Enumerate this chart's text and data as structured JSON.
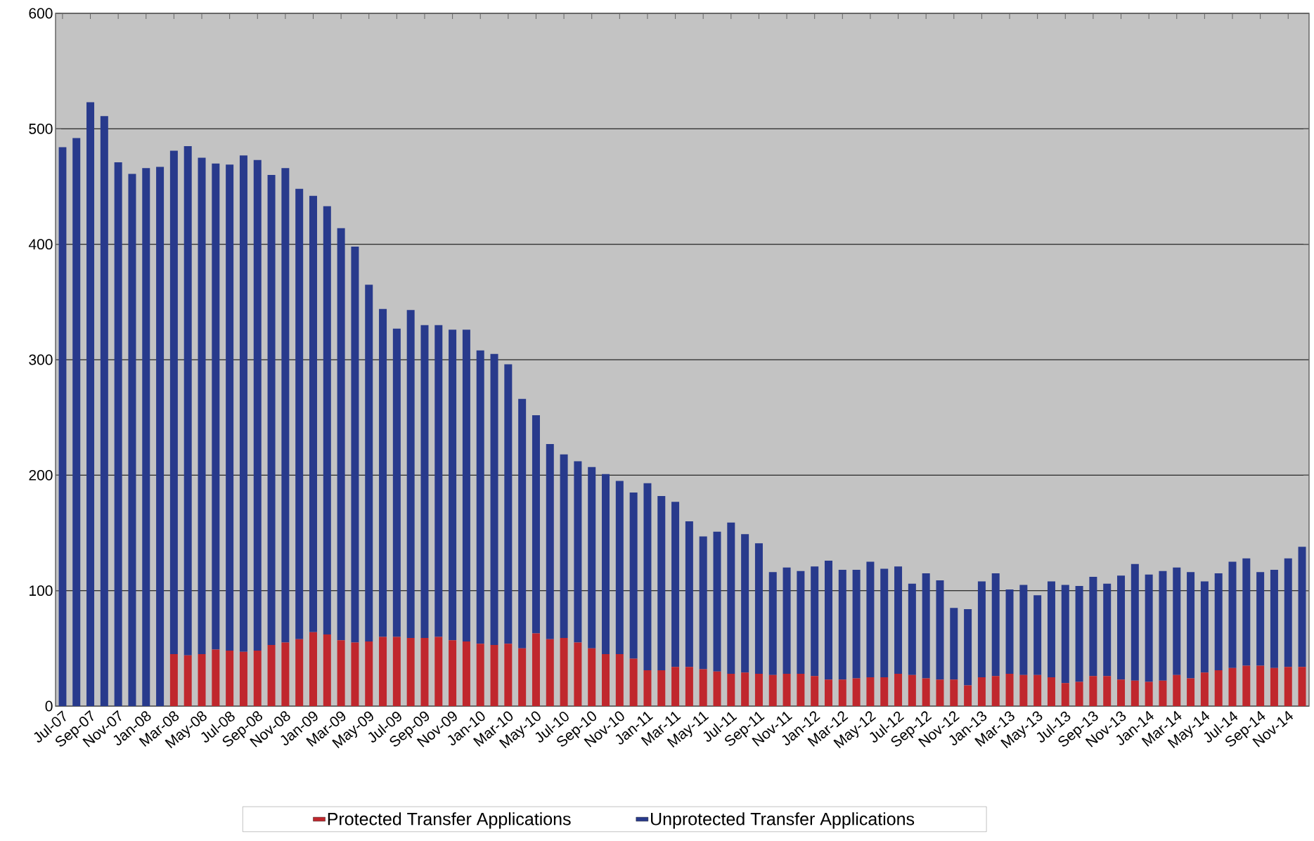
{
  "chart_data": {
    "type": "bar",
    "stacked": true,
    "grid": "y",
    "legend": "bottom",
    "ylim": [
      0,
      600
    ],
    "yticks": [
      0,
      100,
      200,
      300,
      400,
      500,
      600
    ],
    "categories": [
      "Jul-07",
      null,
      "Sep-07",
      null,
      "Nov-07",
      null,
      "Jan-08",
      null,
      "Mar-08",
      null,
      "May-08",
      null,
      "Jul-08",
      null,
      "Sep-08",
      null,
      "Nov-08",
      null,
      "Jan-09",
      null,
      "Mar-09",
      null,
      "May-09",
      null,
      "Jul-09",
      null,
      "Sep-09",
      null,
      "Nov-09",
      null,
      "Jan-10",
      null,
      "Mar-10",
      null,
      "May-10",
      null,
      "Jul-10",
      null,
      "Sep-10",
      null,
      "Nov-10",
      null,
      "Jan-11",
      null,
      "Mar-11",
      null,
      "May-11",
      null,
      "Jul-11",
      null,
      "Sep-11",
      null,
      "Nov-11",
      null,
      "Jan-12",
      null,
      "Mar-12",
      null,
      "May-12",
      null,
      "Jul-12",
      null,
      "Sep-12",
      null,
      "Nov-12",
      null,
      "Jan-13",
      null,
      "Mar-13",
      null,
      "May-13",
      null,
      "Jul-13",
      null,
      "Sep-13",
      null,
      "Nov-13",
      null,
      "Jan-14",
      null,
      "Mar-14",
      null,
      "May-14",
      null,
      "Jul-14",
      null,
      "Sep-14",
      null,
      "Nov-14",
      null
    ],
    "series": [
      {
        "name": "Protected Transfer Applications",
        "color": "#c0272d",
        "values": [
          0,
          0,
          0,
          0,
          0,
          0,
          0,
          0,
          45,
          44,
          45,
          49,
          48,
          47,
          48,
          53,
          55,
          58,
          64,
          62,
          57,
          55,
          56,
          60,
          60,
          59,
          59,
          60,
          57,
          56,
          54,
          53,
          54,
          50,
          63,
          58,
          59,
          55,
          50,
          45,
          45,
          41,
          31,
          31,
          34,
          34,
          32,
          30,
          28,
          29,
          28,
          27,
          28,
          28,
          26,
          23,
          23,
          24,
          25,
          25,
          28,
          27,
          24,
          23,
          23,
          18,
          25,
          26,
          28,
          27,
          27,
          25,
          20,
          21,
          26,
          26,
          23,
          22,
          21,
          22,
          27,
          24,
          29,
          31,
          33,
          35,
          35,
          33,
          34,
          34
        ]
      },
      {
        "name": "Unprotected Transfer Applications",
        "color": "#283a8c",
        "values": [
          484,
          492,
          523,
          511,
          471,
          461,
          466,
          467,
          436,
          441,
          430,
          421,
          421,
          430,
          425,
          407,
          411,
          390,
          378,
          371,
          357,
          343,
          309,
          284,
          267,
          284,
          271,
          270,
          269,
          270,
          254,
          252,
          242,
          216,
          189,
          169,
          159,
          157,
          157,
          156,
          150,
          144,
          162,
          151,
          143,
          126,
          115,
          121,
          131,
          120,
          113,
          89,
          92,
          89,
          95,
          103,
          95,
          94,
          100,
          94,
          93,
          79,
          91,
          86,
          62,
          66,
          83,
          89,
          73,
          78,
          69,
          83,
          85,
          83,
          86,
          80,
          90,
          101,
          93,
          95,
          93,
          92,
          79,
          84,
          92,
          93,
          81,
          85,
          94,
          104
        ]
      }
    ]
  }
}
